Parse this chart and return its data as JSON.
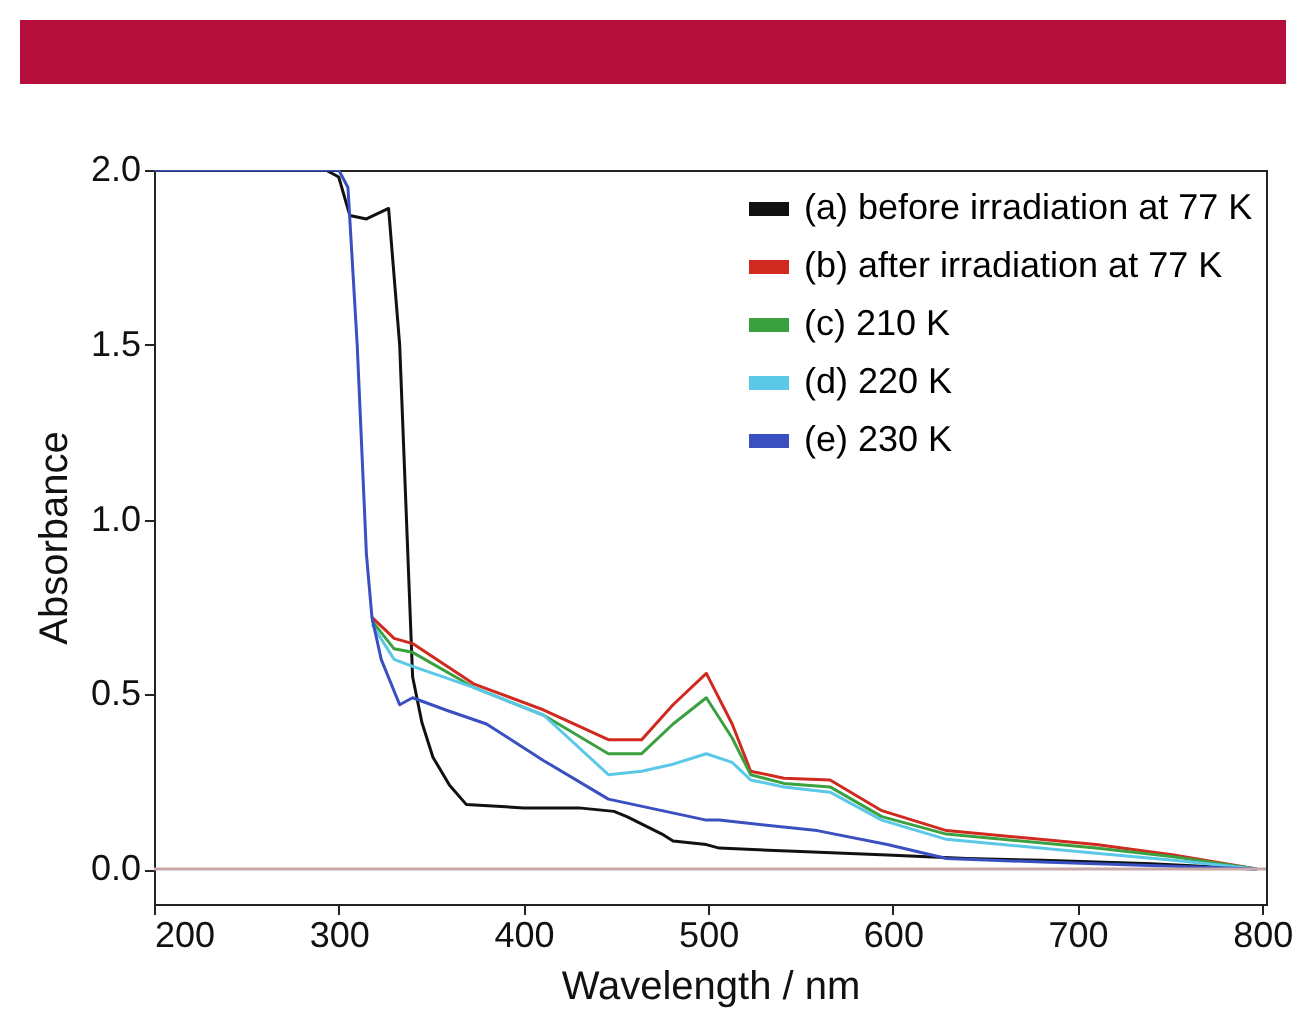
{
  "chart_data": {
    "type": "line",
    "xlabel": "Wavelength / nm",
    "ylabel": "Absorbance",
    "xlim": [
      200,
      802
    ],
    "ylim": [
      -0.1,
      2.0
    ],
    "xticks": [
      200,
      300,
      400,
      500,
      600,
      700,
      800
    ],
    "yticks": [
      {
        "value": 0,
        "label": "0.0"
      },
      0.5,
      {
        "value": 1,
        "label": "1.0"
      },
      1.5,
      {
        "value": 2,
        "label": "2.0"
      }
    ],
    "grid": false,
    "legend": "top right",
    "line_style": "solid",
    "marker": "none",
    "ref_lines": [
      {
        "axis": "y",
        "value": 0,
        "color": "#c8a8a8"
      }
    ],
    "series": [
      {
        "name": "(a) before irradiation at 77 K",
        "color": "#111111",
        "x": [
          200,
          293,
          300,
          306,
          315,
          327,
          333,
          340,
          345,
          351,
          360,
          369,
          400,
          430,
          449,
          456,
          475,
          481,
          499,
          506,
          550,
          597,
          640,
          681,
          740,
          797
        ],
        "values": [
          2.0,
          2.0,
          1.98,
          1.87,
          1.86,
          1.89,
          1.5,
          0.55,
          0.42,
          0.32,
          0.24,
          0.185,
          0.175,
          0.175,
          0.165,
          0.15,
          0.1,
          0.08,
          0.07,
          0.06,
          0.05,
          0.04,
          0.03,
          0.025,
          0.015,
          0.0
        ]
      },
      {
        "name": "(b) after irradiation at 77 K",
        "color": "#d02a20",
        "x": [
          318,
          330,
          340,
          373,
          411,
          446,
          464,
          481,
          499,
          513,
          523,
          541,
          566,
          594,
          629,
          710,
          752,
          797
        ],
        "values": [
          0.72,
          0.66,
          0.645,
          0.53,
          0.455,
          0.37,
          0.37,
          0.47,
          0.56,
          0.415,
          0.28,
          0.26,
          0.255,
          0.167,
          0.11,
          0.07,
          0.04,
          0.0
        ]
      },
      {
        "name": "(c) 210 K",
        "color": "#3aa040",
        "x": [
          318,
          330,
          340,
          373,
          411,
          446,
          464,
          481,
          499,
          513,
          523,
          541,
          566,
          594,
          629,
          710,
          752,
          797
        ],
        "values": [
          0.71,
          0.63,
          0.62,
          0.52,
          0.44,
          0.33,
          0.33,
          0.415,
          0.49,
          0.375,
          0.27,
          0.245,
          0.235,
          0.15,
          0.1,
          0.06,
          0.035,
          0.0
        ]
      },
      {
        "name": "(d) 220 K",
        "color": "#5bc8e8",
        "x": [
          318,
          330,
          340,
          373,
          411,
          446,
          464,
          481,
          499,
          513,
          523,
          541,
          566,
          594,
          629,
          710,
          752,
          797
        ],
        "values": [
          0.7,
          0.6,
          0.58,
          0.52,
          0.44,
          0.27,
          0.28,
          0.3,
          0.33,
          0.305,
          0.255,
          0.235,
          0.22,
          0.14,
          0.085,
          0.045,
          0.025,
          0.0
        ]
      },
      {
        "name": "(e) 230 K",
        "color": "#3a4fc0",
        "x": [
          200,
          300,
          305,
          310,
          315,
          318,
          323,
          333,
          340,
          358,
          380,
          411,
          446,
          499,
          506,
          559,
          597,
          629,
          681,
          797
        ],
        "values": [
          2.0,
          2.0,
          1.95,
          1.5,
          0.9,
          0.72,
          0.6,
          0.47,
          0.49,
          0.455,
          0.415,
          0.31,
          0.2,
          0.14,
          0.14,
          0.11,
          0.07,
          0.03,
          0.02,
          0.0
        ]
      }
    ]
  }
}
